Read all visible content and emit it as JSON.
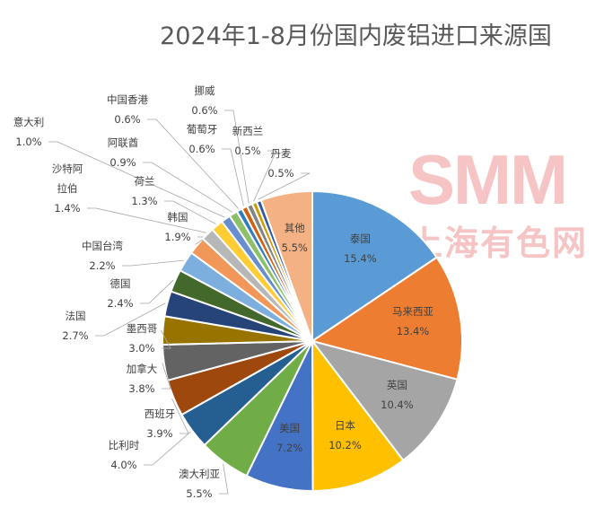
{
  "chart_data": {
    "type": "pie",
    "title": "2024年1-8月份国内废铝进口来源国",
    "watermark": "SMM 上海有色网",
    "start": "top, clockwise",
    "legend": "none (data labels)",
    "slices": [
      {
        "label": "泰国",
        "value": 15.4,
        "display": "15.4%",
        "color": "#5B9BD5"
      },
      {
        "label": "马来西亚",
        "value": 13.4,
        "display": "13.4%",
        "color": "#ED7D31"
      },
      {
        "label": "英国",
        "value": 10.4,
        "display": "10.4%",
        "color": "#A5A5A5"
      },
      {
        "label": "日本",
        "value": 10.2,
        "display": "10.2%",
        "color": "#FFC000"
      },
      {
        "label": "美国",
        "value": 7.2,
        "display": "7.2%",
        "color": "#4472C4"
      },
      {
        "label": "澳大利亚",
        "value": 5.5,
        "display": "5.5%",
        "color": "#70AD47"
      },
      {
        "label": "比利时",
        "value": 4.0,
        "display": "4.0%",
        "color": "#255E91"
      },
      {
        "label": "西班牙",
        "value": 3.9,
        "display": "3.9%",
        "color": "#9E480E"
      },
      {
        "label": "加拿大",
        "value": 3.8,
        "display": "3.8%",
        "color": "#636363"
      },
      {
        "label": "墨西哥",
        "value": 3.0,
        "display": "3.0%",
        "color": "#997300"
      },
      {
        "label": "法国",
        "value": 2.7,
        "display": "2.7%",
        "color": "#264478"
      },
      {
        "label": "德国",
        "value": 2.4,
        "display": "2.4%",
        "color": "#43682B"
      },
      {
        "label": "中国台湾",
        "value": 2.2,
        "display": "2.2%",
        "color": "#7CAFDD"
      },
      {
        "label": "韩国",
        "value": 1.9,
        "display": "1.9%",
        "color": "#F1975A"
      },
      {
        "label": "沙特阿拉伯",
        "value": 1.4,
        "display": "1.4%",
        "color": "#B7B7B7"
      },
      {
        "label": "荷兰",
        "value": 1.3,
        "display": "1.3%",
        "color": "#FFCD33"
      },
      {
        "label": "意大利",
        "value": 1.0,
        "display": "1.0%",
        "color": "#698ED0"
      },
      {
        "label": "阿联酋",
        "value": 0.9,
        "display": "0.9%",
        "color": "#8CC168"
      },
      {
        "label": "中国香港",
        "value": 0.6,
        "display": "0.6%",
        "color": "#327DC2"
      },
      {
        "label": "葡萄牙",
        "value": 0.6,
        "display": "0.6%",
        "color": "#D26012"
      },
      {
        "label": "挪威",
        "value": 0.6,
        "display": "0.6%",
        "color": "#848484"
      },
      {
        "label": "新西兰",
        "value": 0.5,
        "display": "0.5%",
        "color": "#CC9A00"
      },
      {
        "label": "丹麦",
        "value": 0.5,
        "display": "0.5%",
        "color": "#335AA1"
      },
      {
        "label": "其他",
        "value": 5.5,
        "display": "5.5%",
        "color": "#F4B183"
      }
    ]
  }
}
